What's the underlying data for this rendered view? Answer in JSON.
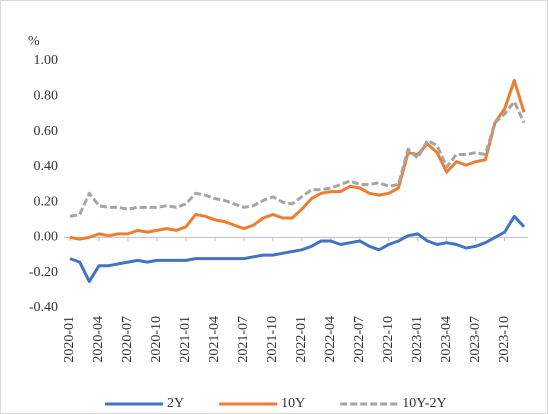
{
  "chart_data": {
    "type": "line",
    "y_label": "%",
    "categories": [
      "2020-01",
      null,
      null,
      "2020-04",
      null,
      null,
      "2020-07",
      null,
      null,
      "2020-10",
      null,
      null,
      "2021-01",
      null,
      null,
      "2021-04",
      null,
      null,
      "2021-07",
      null,
      null,
      "2021-10",
      null,
      null,
      "2022-01",
      null,
      null,
      "2022-04",
      null,
      null,
      "2022-07",
      null,
      null,
      "2022-10",
      null,
      null,
      "2023-01",
      null,
      null,
      "2023-04",
      null,
      null,
      "2023-07",
      null,
      null,
      "2023-10",
      null,
      null
    ],
    "series": [
      {
        "name": "2Y",
        "color": "#4472c4",
        "dash": false,
        "values": [
          -0.12,
          -0.14,
          -0.25,
          -0.16,
          -0.16,
          -0.15,
          -0.14,
          -0.13,
          -0.14,
          -0.13,
          -0.13,
          -0.13,
          -0.13,
          -0.12,
          -0.12,
          -0.12,
          -0.12,
          -0.12,
          -0.12,
          -0.11,
          -0.1,
          -0.1,
          -0.09,
          -0.08,
          -0.07,
          -0.05,
          -0.02,
          -0.02,
          -0.04,
          -0.03,
          -0.02,
          -0.05,
          -0.07,
          -0.04,
          -0.02,
          0.01,
          0.02,
          -0.02,
          -0.04,
          -0.03,
          -0.04,
          -0.06,
          -0.05,
          -0.03,
          0.0,
          0.03,
          0.12,
          0.06
        ]
      },
      {
        "name": "10Y",
        "color": "#ed7d31",
        "dash": false,
        "values": [
          0.0,
          -0.01,
          0.0,
          0.02,
          0.01,
          0.02,
          0.02,
          0.04,
          0.03,
          0.04,
          0.05,
          0.04,
          0.06,
          0.13,
          0.12,
          0.1,
          0.09,
          0.07,
          0.05,
          0.07,
          0.11,
          0.13,
          0.11,
          0.11,
          0.16,
          0.22,
          0.25,
          0.26,
          0.26,
          0.29,
          0.28,
          0.25,
          0.24,
          0.25,
          0.28,
          0.48,
          0.47,
          0.53,
          0.48,
          0.37,
          0.43,
          0.41,
          0.43,
          0.44,
          0.65,
          0.73,
          0.89,
          0.71
        ]
      },
      {
        "name": "10Y-2Y",
        "color": "#a5a5a5",
        "dash": true,
        "values": [
          0.12,
          0.13,
          0.25,
          0.18,
          0.17,
          0.17,
          0.16,
          0.17,
          0.17,
          0.17,
          0.18,
          0.17,
          0.19,
          0.25,
          0.24,
          0.22,
          0.21,
          0.19,
          0.17,
          0.18,
          0.21,
          0.23,
          0.2,
          0.19,
          0.23,
          0.27,
          0.27,
          0.28,
          0.3,
          0.32,
          0.3,
          0.3,
          0.31,
          0.29,
          0.3,
          0.5,
          0.45,
          0.55,
          0.52,
          0.4,
          0.47,
          0.47,
          0.48,
          0.47,
          0.65,
          0.7,
          0.77,
          0.65
        ]
      }
    ],
    "ylim": [
      -0.4,
      1.0
    ],
    "yticks": [
      {
        "value": -0.4,
        "label": "-0.40"
      },
      {
        "value": -0.2,
        "label": "-0.20"
      },
      {
        "value": 0,
        "label": "0.00"
      },
      {
        "value": 0.2,
        "label": "0.20"
      },
      {
        "value": 0.4,
        "label": "0.40"
      },
      {
        "value": 0.6,
        "label": "0.60"
      },
      {
        "value": 0.8,
        "label": "0.80"
      },
      {
        "value": 1.0,
        "label": "1.00"
      }
    ],
    "grid": false,
    "legend": "bottom"
  }
}
